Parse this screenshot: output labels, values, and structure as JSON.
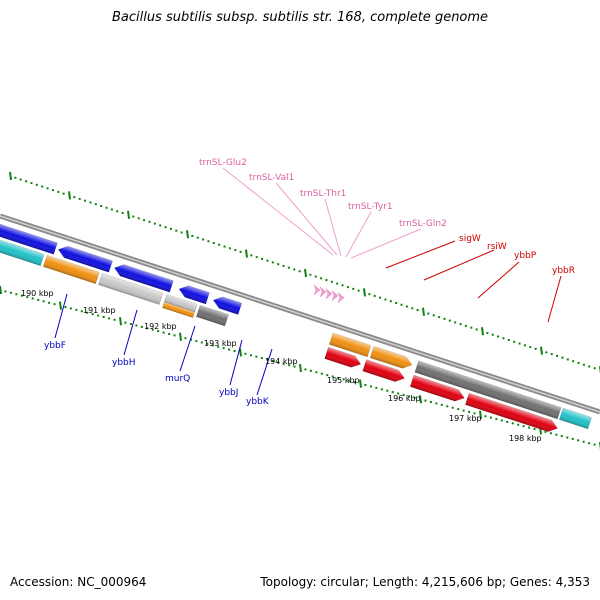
{
  "title": "Bacillus subtilis subsp. subtilis str. 168, complete genome",
  "footer": {
    "accession": "Accession: NC_000964",
    "summary": "Topology: circular; Length: 4,215,606 bp; Genes: 4,353"
  },
  "colors": {
    "blue": "#1010e0",
    "cyan": "#20c0c8",
    "teal": "#10e0a0",
    "orange": "#f09010",
    "gray": "#707070",
    "lightgray": "#c8c8c8",
    "red": "#e00010",
    "pink": "#f0a0d0",
    "tick_green": "#108010",
    "label_blue": "#0000c0",
    "label_red": "#d00000",
    "label_pink": "#e060a0"
  },
  "scale_labels": [
    "190 kbp",
    "191 kbp",
    "192 kbp",
    "193 kbp",
    "194 kbp",
    "195 kbp",
    "196 kbp",
    "197 kbp",
    "198 kbp"
  ],
  "genes_below": [
    {
      "name": "ybbF",
      "color": "label_blue"
    },
    {
      "name": "ybbH",
      "color": "label_blue"
    },
    {
      "name": "murQ",
      "color": "label_blue"
    },
    {
      "name": "ybbJ",
      "color": "label_blue"
    },
    {
      "name": "ybbK",
      "color": "label_blue"
    }
  ],
  "genes_above_red": [
    {
      "name": "sigW"
    },
    {
      "name": "rsiW"
    },
    {
      "name": "ybbP"
    },
    {
      "name": "ybbR"
    }
  ],
  "trna_labels": [
    {
      "name": "trnSL-Glu2"
    },
    {
      "name": "trnSL-Val1"
    },
    {
      "name": "trnSL-Thr1"
    },
    {
      "name": "trnSL-Tyr1"
    },
    {
      "name": "trnSL-Gln2"
    }
  ]
}
